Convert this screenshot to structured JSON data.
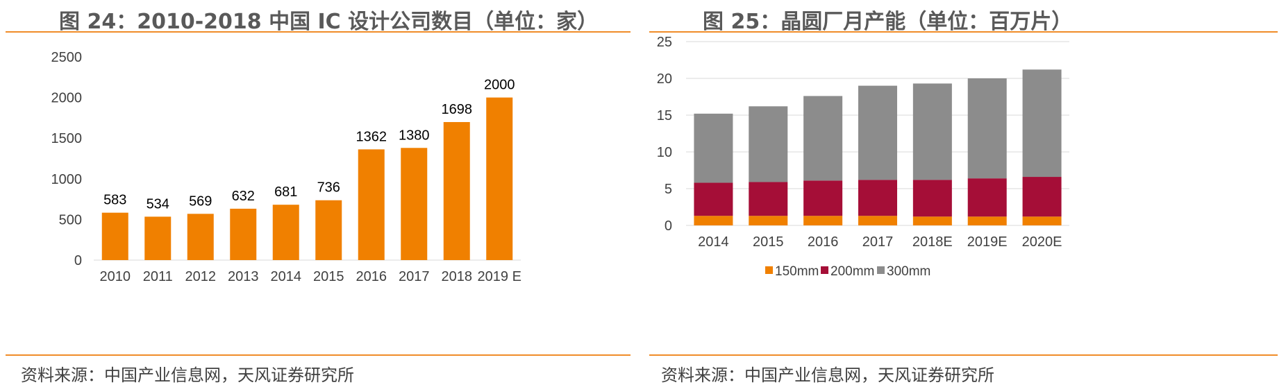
{
  "left": {
    "figure_title": "图 24：2010-2018 中国 IC 设计公司数目（单位：家）",
    "source": "资料来源：中国产业信息网，天风证券研究所"
  },
  "right": {
    "figure_title": "图 25：晶圆厂月产能（单位：百万片）",
    "source": "资料来源：中国产业信息网，天风证券研究所"
  },
  "colors": {
    "accent_rule": "#f08c28",
    "bar_orange": "#f08000",
    "c150": "#f08000",
    "c200": "#a50e37",
    "c300": "#8c8c8c"
  },
  "chart_data": [
    {
      "type": "bar",
      "title": "图 24：2010-2018 中国 IC 设计公司数目（单位：家）",
      "categories": [
        "2010",
        "2011",
        "2012",
        "2013",
        "2014",
        "2015",
        "2016",
        "2017",
        "2018",
        "2019 E"
      ],
      "values": [
        583,
        534,
        569,
        632,
        681,
        736,
        1362,
        1380,
        1698,
        2000
      ],
      "data_labels": [
        "583",
        "534",
        "569",
        "632",
        "681",
        "736",
        "1362",
        "1380",
        "1698",
        "2000"
      ],
      "ylim": [
        0,
        2500
      ],
      "yticks": [
        "0",
        "500",
        "1000",
        "1500",
        "2000",
        "2500"
      ],
      "xlabel": "",
      "ylabel": "",
      "grid": false
    },
    {
      "type": "stacked_bar",
      "title": "图 25：晶圆厂月产能（单位：百万片）",
      "categories": [
        "2014",
        "2015",
        "2016",
        "2017",
        "2018E",
        "2019E",
        "2020E"
      ],
      "series": [
        {
          "name": "150mm",
          "values": [
            1.3,
            1.3,
            1.3,
            1.3,
            1.2,
            1.2,
            1.2
          ]
        },
        {
          "name": "200mm",
          "values": [
            4.5,
            4.6,
            4.8,
            4.9,
            5.0,
            5.2,
            5.4
          ]
        },
        {
          "name": "300mm",
          "values": [
            9.4,
            10.3,
            11.5,
            12.8,
            13.1,
            13.6,
            14.6
          ]
        }
      ],
      "ylim": [
        0,
        25
      ],
      "yticks": [
        "0",
        "5",
        "10",
        "15",
        "20",
        "25"
      ],
      "legend": "bottom",
      "grid": true
    }
  ]
}
